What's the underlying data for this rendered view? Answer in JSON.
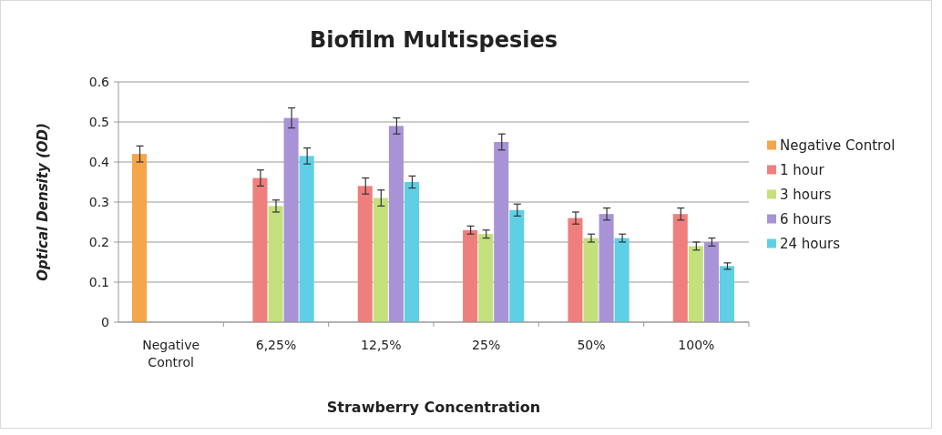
{
  "chart_data": {
    "type": "bar",
    "title": "Biofilm Multispesies",
    "xlabel": "Strawberry Concentration",
    "ylabel": "Optical Density (OD)",
    "categories": [
      "Negative Control",
      "6,25%",
      "12,5%",
      "25%",
      "50%",
      "100%"
    ],
    "series": [
      {
        "name": "Negative Control",
        "color": "#f5a54a",
        "values": [
          0.42,
          null,
          null,
          null,
          null,
          null
        ],
        "errors": [
          0.02,
          null,
          null,
          null,
          null,
          null
        ]
      },
      {
        "name": "1 hour",
        "color": "#ef7f7d",
        "values": [
          null,
          0.36,
          0.34,
          0.23,
          0.26,
          0.27
        ],
        "errors": [
          null,
          0.02,
          0.02,
          0.01,
          0.015,
          0.015
        ]
      },
      {
        "name": "3 hours",
        "color": "#c3e07c",
        "values": [
          null,
          0.29,
          0.31,
          0.22,
          0.21,
          0.19
        ],
        "errors": [
          null,
          0.015,
          0.02,
          0.01,
          0.01,
          0.01
        ]
      },
      {
        "name": "6 hours",
        "color": "#a793d6",
        "values": [
          null,
          0.51,
          0.49,
          0.45,
          0.27,
          0.2
        ],
        "errors": [
          null,
          0.025,
          0.02,
          0.02,
          0.015,
          0.01
        ]
      },
      {
        "name": "24 hours",
        "color": "#5fcfe6",
        "values": [
          null,
          0.415,
          0.35,
          0.28,
          0.21,
          0.14
        ],
        "errors": [
          null,
          0.02,
          0.015,
          0.015,
          0.01,
          0.008
        ]
      }
    ],
    "ylim": [
      0,
      0.6
    ],
    "yticks": [
      0,
      0.1,
      0.2,
      0.3,
      0.4,
      0.5,
      0.6
    ],
    "grid": "y",
    "legend": "right"
  }
}
